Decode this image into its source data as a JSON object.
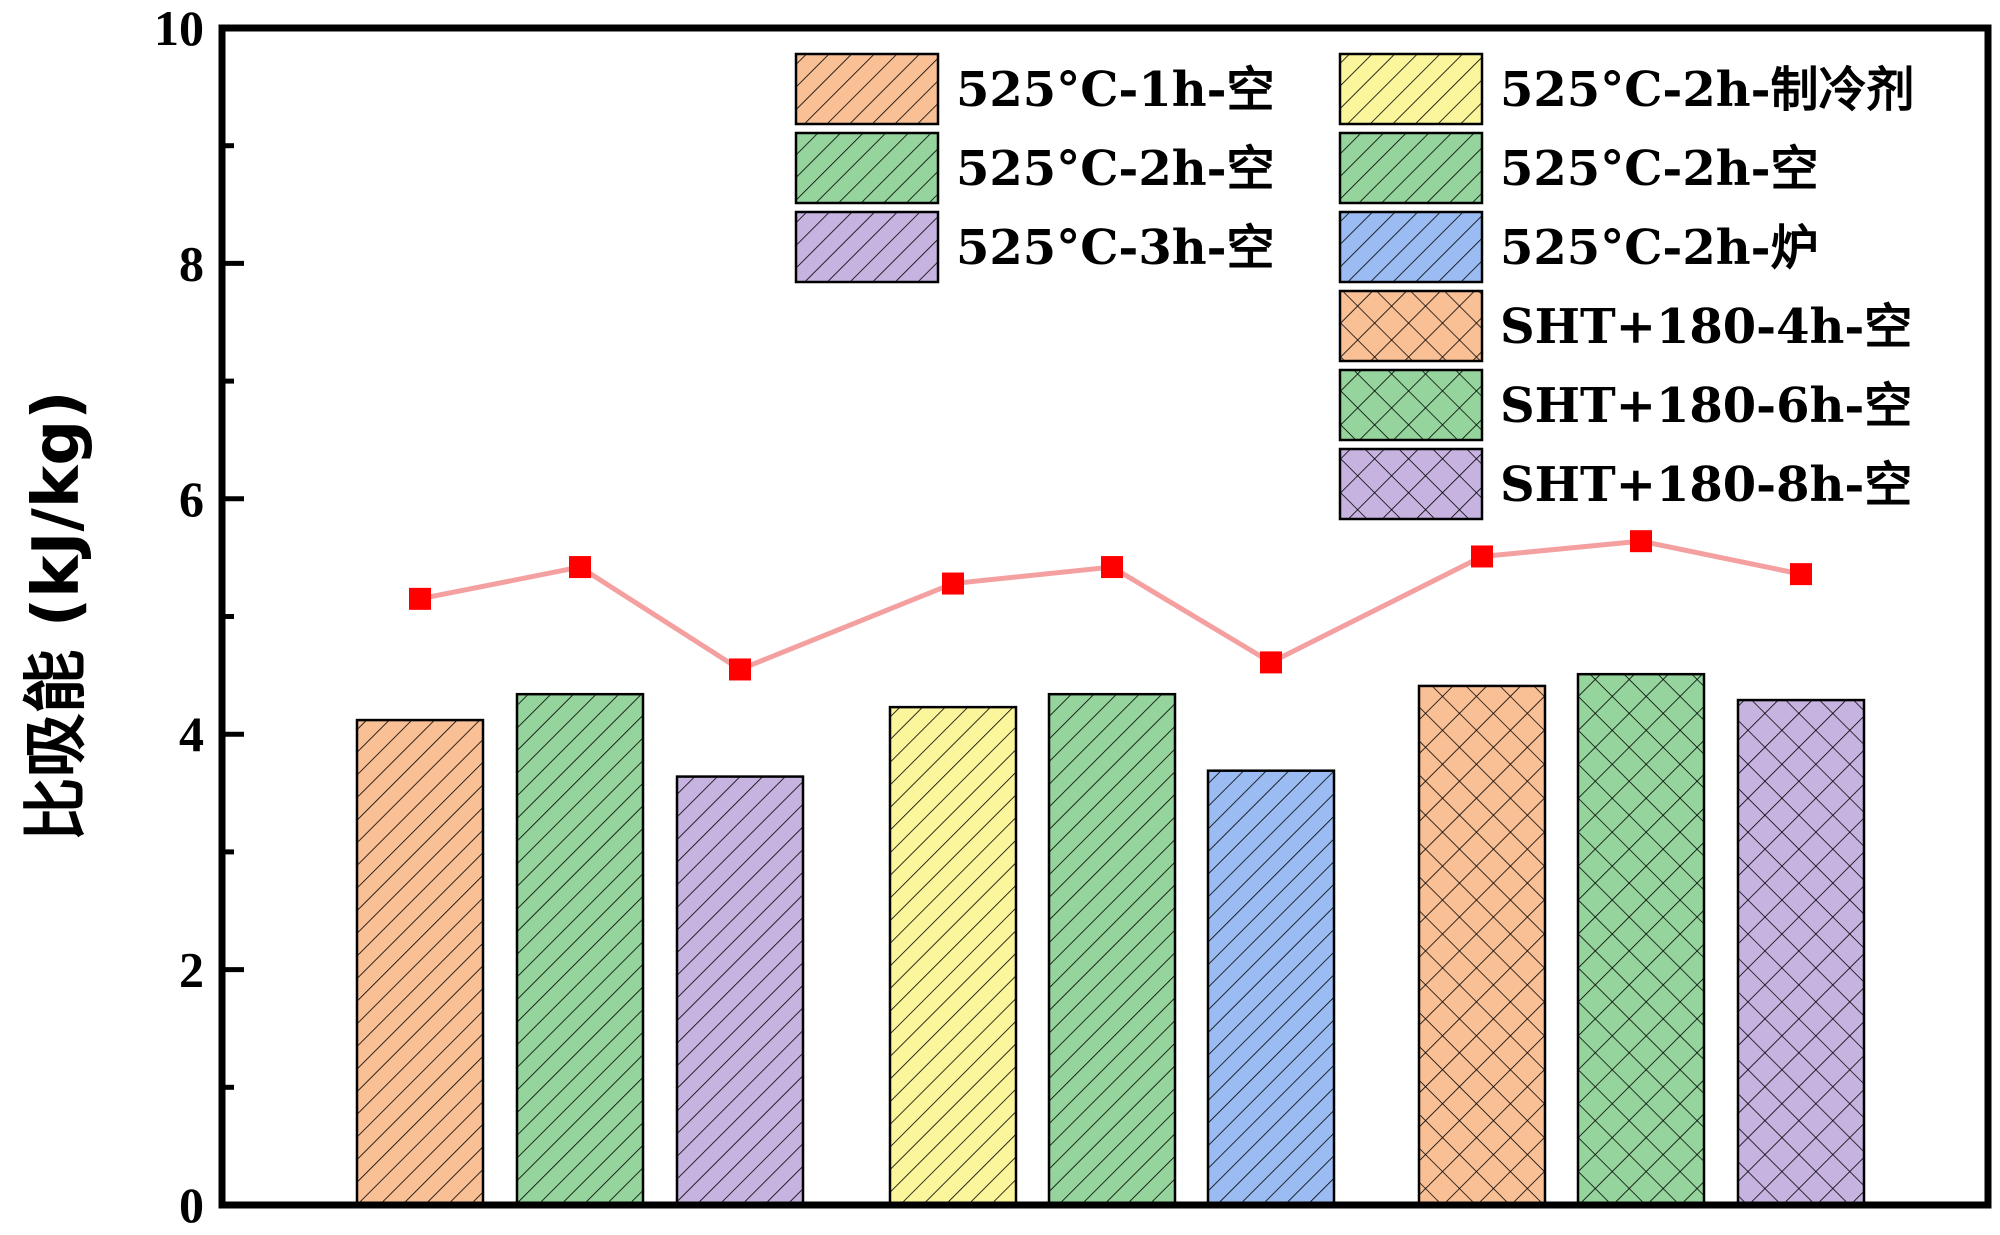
{
  "chart_data": {
    "type": "bar",
    "ylabel": "比吸能 (kJ/kg)",
    "ylim": [
      0,
      10
    ],
    "yticks": [
      "0",
      "2",
      "4",
      "6",
      "8",
      "10"
    ],
    "grid": false,
    "legend_position": "top-right",
    "series": [
      {
        "name": "525°C-1h-空",
        "value": 4.12,
        "color": "#f9bf95",
        "hatch": "diagonal"
      },
      {
        "name": "525°C-2h-空",
        "value": 4.34,
        "color": "#95d49c",
        "hatch": "diagonal"
      },
      {
        "name": "525°C-3h-空",
        "value": 3.64,
        "color": "#c6b3e0",
        "hatch": "diagonal"
      },
      {
        "name": "525°C-2h-制冷剂",
        "value": 4.23,
        "color": "#fbf59c",
        "hatch": "diagonal"
      },
      {
        "name": "525°C-2h-空",
        "value": 4.34,
        "color": "#95d49c",
        "hatch": "diagonal"
      },
      {
        "name": "525°C-2h-炉",
        "value": 3.69,
        "color": "#9bbcf2",
        "hatch": "diagonal"
      },
      {
        "name": "SHT+180-4h-空",
        "value": 4.41,
        "color": "#f9bf95",
        "hatch": "cross"
      },
      {
        "name": "SHT+180-6h-空",
        "value": 4.51,
        "color": "#95d49c",
        "hatch": "cross"
      },
      {
        "name": "SHT+180-8h-空",
        "value": 4.29,
        "color": "#c6b3e0",
        "hatch": "cross"
      }
    ],
    "line_series": {
      "values": [
        5.15,
        5.42,
        4.55,
        5.28,
        5.42,
        4.61,
        5.51,
        5.64,
        5.36
      ],
      "line_color": "#f4a0a0",
      "marker_color": "#ff0000"
    }
  }
}
